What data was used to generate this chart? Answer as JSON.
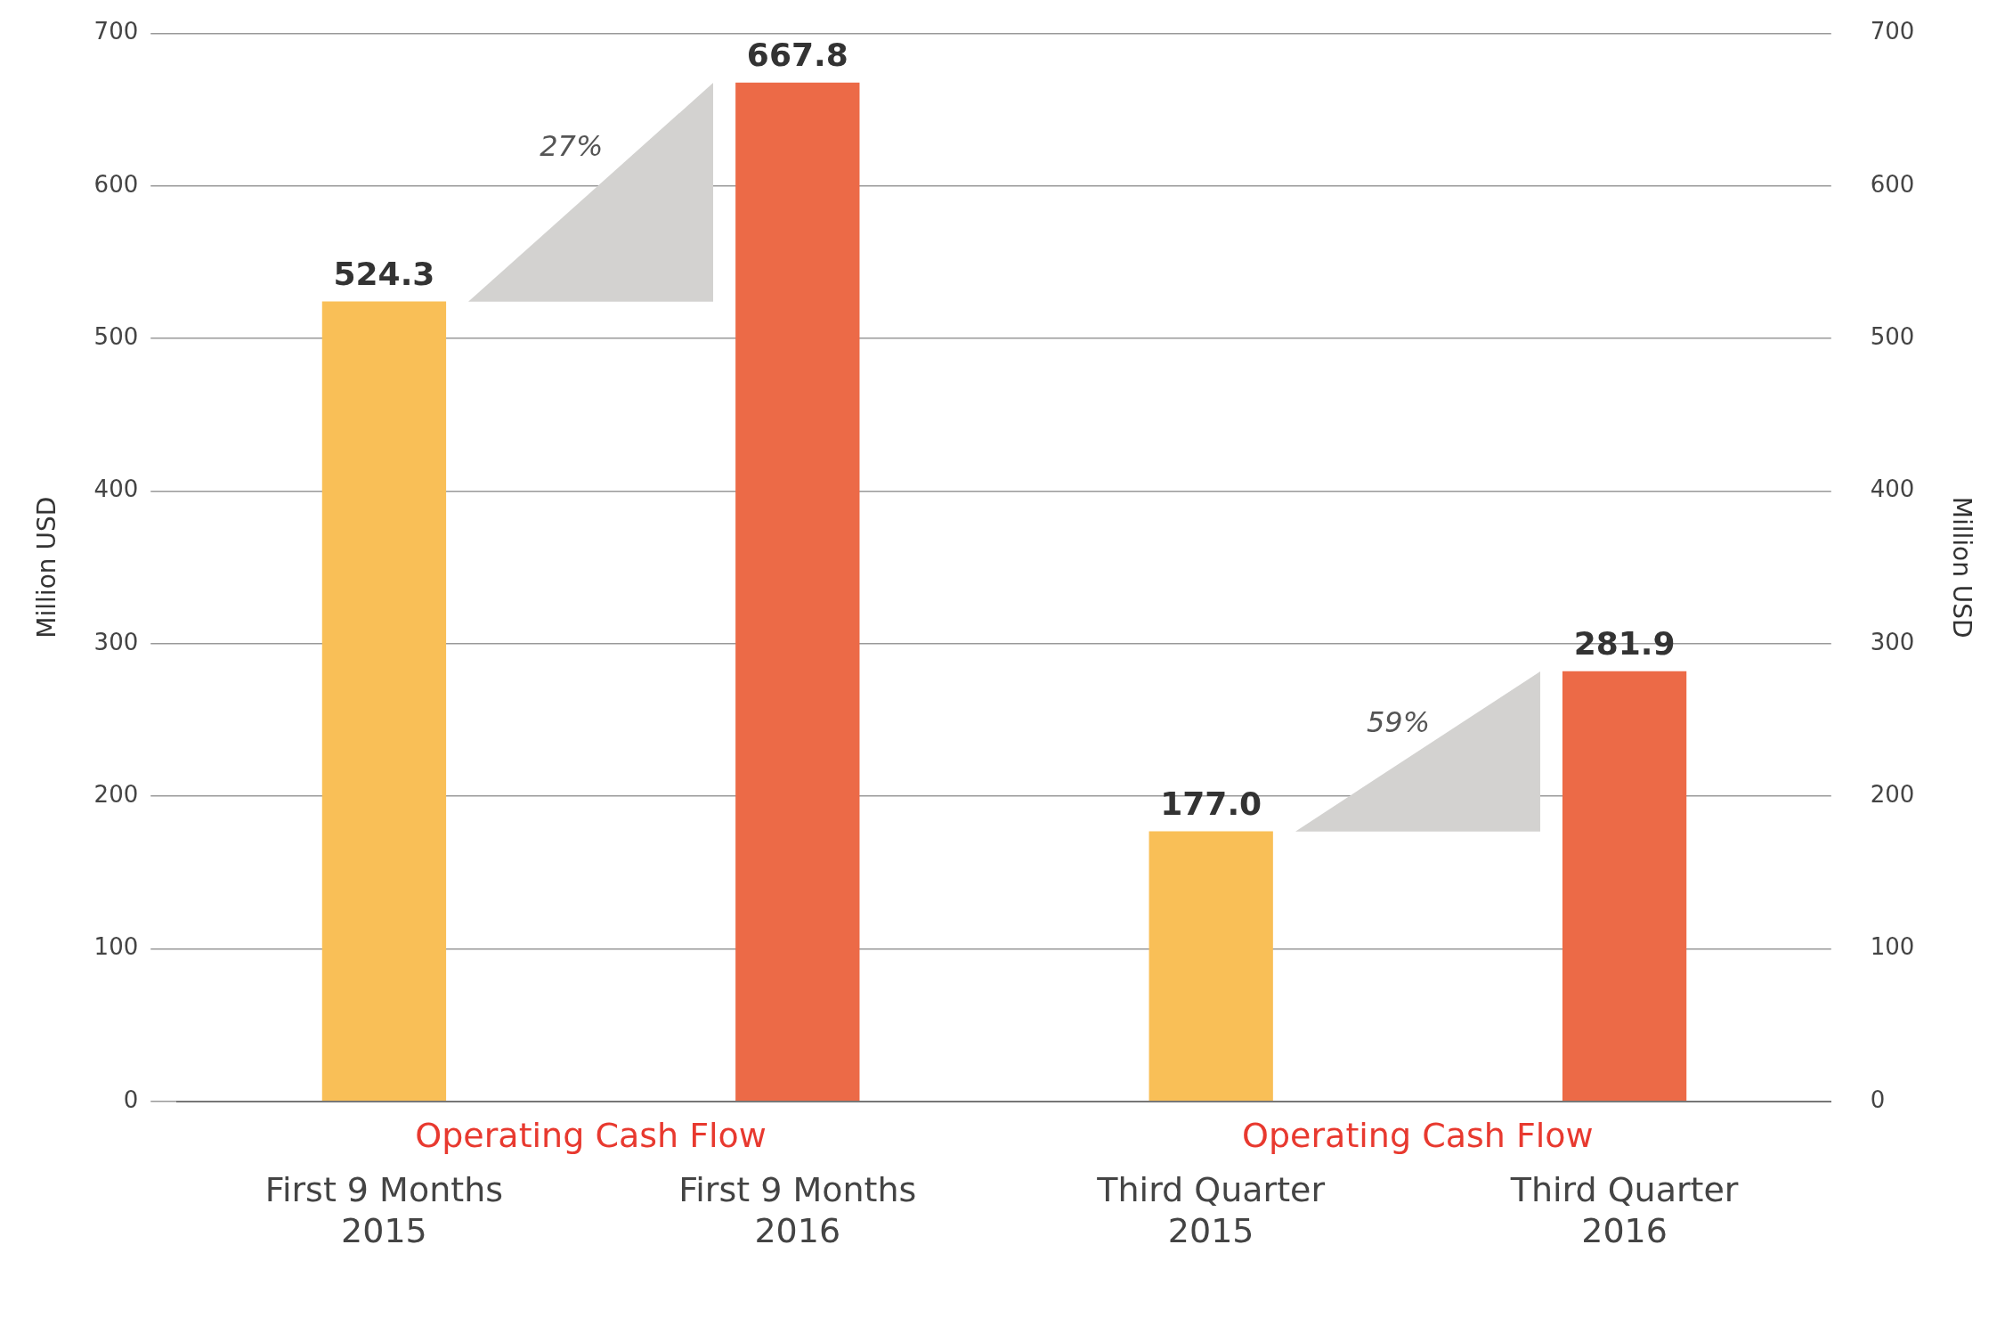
{
  "chart_data": {
    "type": "bar",
    "categories": [
      "First 9 Months\n2015",
      "First 9 Months\n2016",
      "Third Quarter\n2015",
      "Third Quarter\n2016"
    ],
    "values": [
      524.3,
      667.8,
      177.0,
      281.9
    ],
    "colors": [
      "#f9bf57",
      "#ec6a47",
      "#f9bf57",
      "#ec6a47"
    ],
    "value_labels": [
      "524.3",
      "667.8",
      "177.0",
      "281.9"
    ],
    "ylabel": "Million USD",
    "y2label": "Million USD",
    "ylim": [
      0,
      700
    ],
    "yticks": [
      0,
      100,
      200,
      300,
      400,
      500,
      600,
      700
    ],
    "y2lim": [
      0,
      700
    ],
    "y2ticks": [
      0,
      100,
      200,
      300,
      400,
      500,
      600,
      700
    ],
    "annotations": [
      "Operating Cash Flow",
      "Operating Cash Flow",
      "27%",
      "59%"
    ],
    "grid": "y",
    "legend": false
  }
}
